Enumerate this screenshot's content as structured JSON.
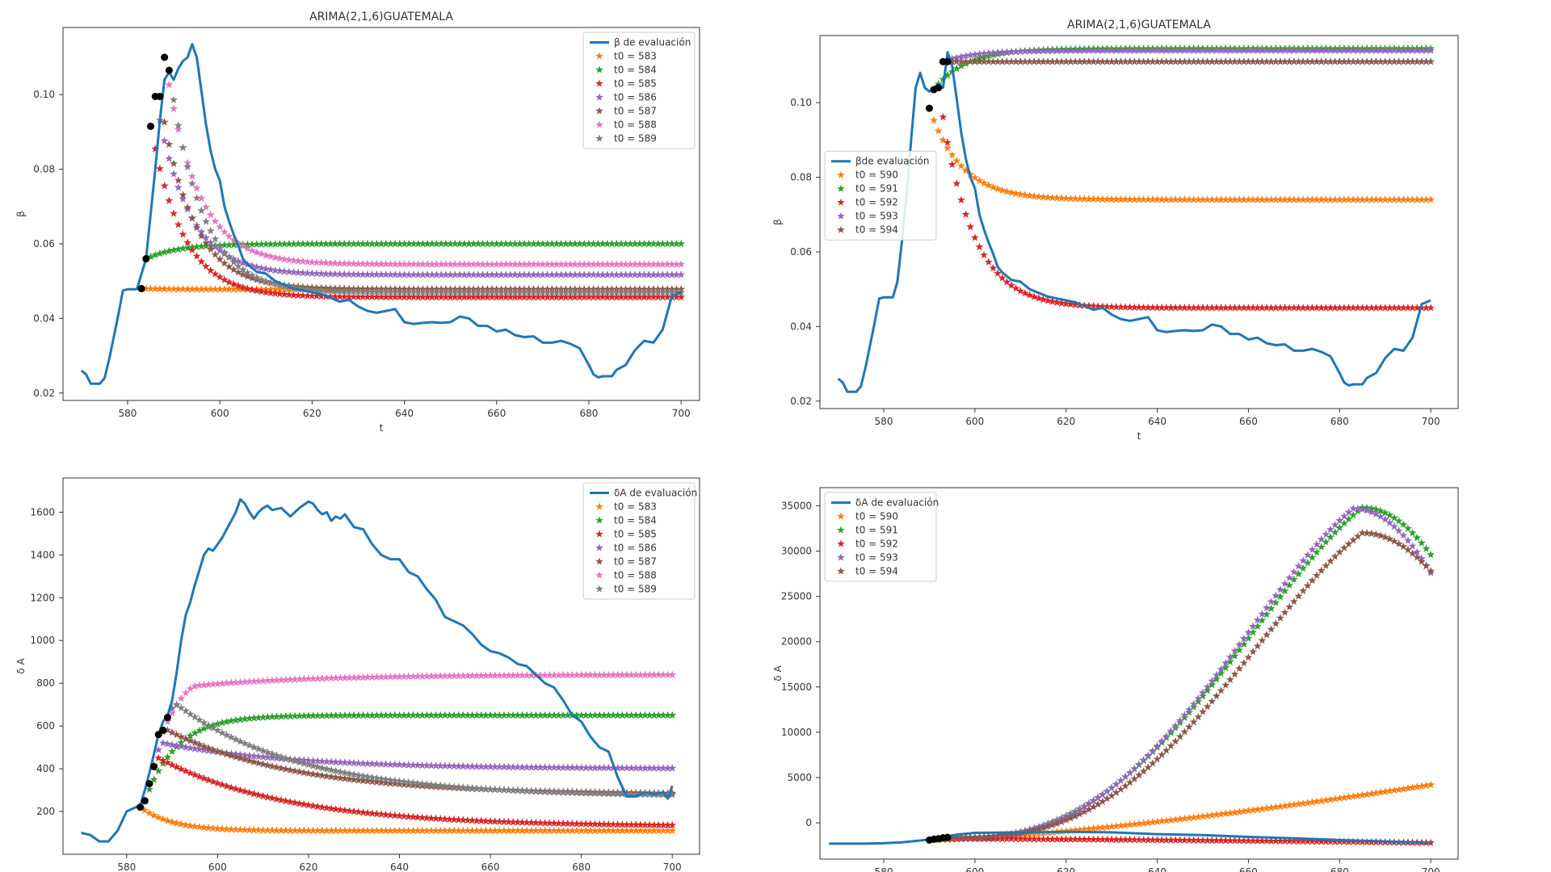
{
  "chart_data": [
    {
      "type": "line",
      "title": "ARIMA(2,1,6)GUATEMALA",
      "xlabel": "t",
      "ylabel": "β",
      "xlim": [
        566,
        704
      ],
      "ylim": [
        0.018,
        0.118
      ],
      "xticks": [
        580,
        600,
        620,
        640,
        660,
        680,
        700
      ],
      "yticks": [
        0.02,
        0.04,
        0.06,
        0.08,
        0.1
      ],
      "ytick_labels": [
        "0.02",
        "0.04",
        "0.06",
        "0.08",
        "0.10"
      ],
      "legend": "top-right",
      "base": {
        "name": "β de evaluación",
        "color": "#1f77b4",
        "x": [
          570,
          571,
          572,
          573,
          574,
          575,
          576,
          577,
          578,
          579,
          580,
          582,
          584,
          585,
          586,
          587,
          588,
          589,
          590,
          591,
          592,
          593,
          594,
          595,
          596,
          597,
          598,
          599,
          600,
          601,
          602,
          603,
          604,
          605,
          606,
          607,
          608,
          610,
          612,
          614,
          616,
          618,
          620,
          622,
          624,
          626,
          628,
          630,
          632,
          634,
          636,
          638,
          640,
          642,
          644,
          646,
          648,
          650,
          652,
          654,
          656,
          658,
          660,
          662,
          664,
          666,
          668,
          670,
          672,
          674,
          676,
          678,
          680,
          681,
          682,
          683,
          684,
          685,
          686,
          688,
          690,
          692,
          694,
          696,
          698,
          700
        ],
        "y": [
          0.026,
          0.025,
          0.0225,
          0.0225,
          0.0225,
          0.024,
          0.029,
          0.035,
          0.041,
          0.0475,
          0.0478,
          0.0478,
          0.056,
          0.068,
          0.08,
          0.093,
          0.104,
          0.106,
          0.104,
          0.107,
          0.109,
          0.11,
          0.1135,
          0.11,
          0.101,
          0.092,
          0.085,
          0.08,
          0.077,
          0.07,
          0.066,
          0.0625,
          0.0595,
          0.056,
          0.0545,
          0.0535,
          0.0525,
          0.052,
          0.05,
          0.049,
          0.048,
          0.0475,
          0.047,
          0.0465,
          0.0455,
          0.0445,
          0.045,
          0.0432,
          0.042,
          0.0415,
          0.042,
          0.0425,
          0.039,
          0.0385,
          0.0388,
          0.039,
          0.0388,
          0.039,
          0.0405,
          0.04,
          0.038,
          0.038,
          0.0365,
          0.037,
          0.0355,
          0.035,
          0.0352,
          0.0335,
          0.0335,
          0.034,
          0.0332,
          0.032,
          0.0275,
          0.025,
          0.0242,
          0.0245,
          0.0245,
          0.0245,
          0.0262,
          0.0275,
          0.0315,
          0.034,
          0.0335,
          0.037,
          0.046,
          0.047
        ]
      },
      "series": [
        {
          "name": "t0 = 583",
          "color": "#ff7f0e",
          "t0": 583,
          "y0": 0.048,
          "yend": 0.0478,
          "peak": null
        },
        {
          "name": "t0 = 584",
          "color": "#2ca02c",
          "t0": 584,
          "y0": 0.056,
          "yend": 0.06,
          "peak": null
        },
        {
          "name": "t0 = 585",
          "color": "#d62728",
          "t0": 585,
          "y0": 0.0915,
          "yend": 0.0457,
          "peak": null
        },
        {
          "name": "t0 = 586",
          "color": "#9467bd",
          "t0": 586,
          "y0": 0.0995,
          "yend": 0.0517,
          "peak": null
        },
        {
          "name": "t0 = 587",
          "color": "#8c564b",
          "t0": 587,
          "y0": 0.0995,
          "yend": 0.0478,
          "peak": null
        },
        {
          "name": "t0 = 588",
          "color": "#e377c2",
          "t0": 588,
          "y0": 0.11,
          "yend": 0.0545,
          "peak": null
        },
        {
          "name": "t0 = 589",
          "color": "#7f7f7f",
          "t0": 589,
          "y0": 0.1065,
          "yend": 0.047,
          "peak": null
        }
      ],
      "xend": 700
    },
    {
      "type": "line",
      "title": "ARIMA(2,1,6)GUATEMALA",
      "xlabel": "t",
      "ylabel": "β",
      "xlim": [
        566,
        706
      ],
      "ylim": [
        0.018,
        0.118
      ],
      "xticks": [
        580,
        600,
        620,
        640,
        660,
        680,
        700
      ],
      "yticks": [
        0.02,
        0.04,
        0.06,
        0.08,
        0.1
      ],
      "ytick_labels": [
        "0.02",
        "0.04",
        "0.06",
        "0.08",
        "0.10"
      ],
      "legend": "center-left",
      "base": {
        "name": "βde evaluación",
        "color": "#1f77b4",
        "x": [
          570,
          571,
          572,
          573,
          574,
          575,
          576,
          577,
          578,
          579,
          580,
          582,
          583,
          584,
          585,
          586,
          587,
          588,
          589,
          590,
          591,
          592,
          593,
          594,
          595,
          596,
          597,
          598,
          599,
          600,
          601,
          602,
          603,
          604,
          605,
          606,
          607,
          608,
          610,
          612,
          614,
          616,
          618,
          620,
          622,
          624,
          626,
          628,
          630,
          632,
          634,
          636,
          638,
          640,
          642,
          644,
          646,
          648,
          650,
          652,
          654,
          656,
          658,
          660,
          662,
          664,
          666,
          668,
          670,
          672,
          674,
          676,
          678,
          680,
          681,
          682,
          683,
          684,
          685,
          686,
          688,
          690,
          692,
          694,
          696,
          698,
          700
        ],
        "y": [
          0.026,
          0.025,
          0.0225,
          0.0225,
          0.0225,
          0.024,
          0.029,
          0.035,
          0.041,
          0.0475,
          0.0478,
          0.0478,
          0.052,
          0.063,
          0.075,
          0.09,
          0.104,
          0.108,
          0.104,
          0.103,
          0.104,
          0.105,
          0.104,
          0.1135,
          0.11,
          0.101,
          0.092,
          0.085,
          0.08,
          0.077,
          0.07,
          0.066,
          0.0625,
          0.0595,
          0.056,
          0.0545,
          0.0535,
          0.0525,
          0.052,
          0.05,
          0.049,
          0.048,
          0.0475,
          0.047,
          0.0465,
          0.0455,
          0.0445,
          0.045,
          0.0432,
          0.042,
          0.0415,
          0.042,
          0.0425,
          0.039,
          0.0385,
          0.0388,
          0.039,
          0.0388,
          0.039,
          0.0405,
          0.04,
          0.038,
          0.038,
          0.0365,
          0.037,
          0.0355,
          0.035,
          0.0352,
          0.0335,
          0.0335,
          0.034,
          0.0332,
          0.032,
          0.0275,
          0.025,
          0.0242,
          0.0245,
          0.0245,
          0.0245,
          0.0262,
          0.0275,
          0.0315,
          0.034,
          0.0335,
          0.037,
          0.046,
          0.047
        ]
      },
      "series": [
        {
          "name": "t0 = 590",
          "color": "#ff7f0e",
          "t0": 590,
          "y0": 0.0985,
          "yend": 0.074,
          "peak": null
        },
        {
          "name": "t0 = 591",
          "color": "#2ca02c",
          "t0": 591,
          "y0": 0.1035,
          "yend": 0.1145,
          "peak": null
        },
        {
          "name": "t0 = 592",
          "color": "#d62728",
          "t0": 592,
          "y0": 0.104,
          "yend": 0.045,
          "peak": null
        },
        {
          "name": "t0 = 593",
          "color": "#9467bd",
          "t0": 593,
          "y0": 0.111,
          "yend": 0.114,
          "peak": null
        },
        {
          "name": "t0 = 594",
          "color": "#8c564b",
          "t0": 594,
          "y0": 0.111,
          "yend": 0.111,
          "peak": null
        }
      ],
      "xend": 700
    },
    {
      "type": "line",
      "title": "",
      "xlabel": "",
      "ylabel": "δ A",
      "xlim": [
        566,
        706
      ],
      "ylim": [
        0,
        1760
      ],
      "xticks": [
        580,
        600,
        620,
        640,
        660,
        680,
        700
      ],
      "yticks": [
        200,
        400,
        600,
        800,
        1000,
        1200,
        1400,
        1600
      ],
      "ytick_labels": [
        "200",
        "400",
        "600",
        "800",
        "1000",
        "1200",
        "1400",
        "1600"
      ],
      "legend": "top-right",
      "base": {
        "name": "δA de evaluación",
        "color": "#1f77b4",
        "x": [
          570,
          572,
          574,
          576,
          578,
          580,
          582,
          583,
          584,
          585,
          586,
          587,
          588,
          589,
          590,
          591,
          592,
          593,
          594,
          595,
          596,
          597,
          598,
          599,
          600,
          601,
          602,
          603,
          604,
          605,
          606,
          607,
          608,
          609,
          610,
          611,
          612,
          614,
          616,
          618,
          620,
          621,
          622,
          623,
          624,
          625,
          626,
          627,
          628,
          630,
          632,
          634,
          636,
          638,
          640,
          642,
          644,
          646,
          648,
          650,
          652,
          654,
          656,
          658,
          660,
          662,
          664,
          666,
          668,
          670,
          672,
          674,
          676,
          678,
          680,
          682,
          684,
          686,
          688,
          690,
          692,
          694,
          696,
          698,
          699,
          700
        ],
        "y": [
          100,
          90,
          60,
          60,
          110,
          200,
          220,
          230,
          300,
          380,
          470,
          560,
          620,
          650,
          720,
          850,
          1000,
          1120,
          1180,
          1260,
          1330,
          1400,
          1430,
          1420,
          1450,
          1480,
          1520,
          1560,
          1600,
          1660,
          1640,
          1600,
          1570,
          1600,
          1620,
          1630,
          1610,
          1620,
          1580,
          1620,
          1650,
          1640,
          1610,
          1590,
          1600,
          1560,
          1580,
          1570,
          1590,
          1530,
          1520,
          1450,
          1400,
          1380,
          1380,
          1320,
          1300,
          1240,
          1190,
          1110,
          1090,
          1070,
          1030,
          980,
          950,
          940,
          920,
          890,
          880,
          840,
          800,
          780,
          720,
          650,
          620,
          550,
          500,
          480,
          360,
          270,
          270,
          290,
          280,
          290,
          260,
          320
        ]
      },
      "series": [
        {
          "name": "t0 = 583",
          "color": "#ff7f0e",
          "t0": 583,
          "y0": 220,
          "yend": 110,
          "peak": null
        },
        {
          "name": "t0 = 584",
          "color": "#2ca02c",
          "t0": 584,
          "y0": 250,
          "yend": 650,
          "peak": null
        },
        {
          "name": "t0 = 585",
          "color": "#d62728",
          "t0": 585,
          "y0": 330,
          "yend": 130,
          "peak": [
            587,
            450
          ]
        },
        {
          "name": "t0 = 586",
          "color": "#9467bd",
          "t0": 586,
          "y0": 410,
          "yend": 400,
          "peak": [
            588,
            520
          ]
        },
        {
          "name": "t0 = 587",
          "color": "#8c564b",
          "t0": 587,
          "y0": 560,
          "yend": 280,
          "peak": [
            589,
            580
          ]
        },
        {
          "name": "t0 = 588",
          "color": "#e377c2",
          "t0": 588,
          "y0": 580,
          "yend": 840,
          "peak": [
            596,
            790
          ]
        },
        {
          "name": "t0 = 589",
          "color": "#7f7f7f",
          "t0": 589,
          "y0": 640,
          "yend": 270,
          "peak": [
            591,
            700
          ]
        }
      ],
      "xend": 700
    },
    {
      "type": "line",
      "title": "",
      "xlabel": "",
      "ylabel": "δ A",
      "xlim": [
        566,
        706
      ],
      "ylim": [
        -4000,
        37000
      ],
      "xticks": [
        580,
        600,
        620,
        640,
        660,
        680,
        700
      ],
      "yticks": [
        0,
        5000,
        10000,
        15000,
        20000,
        25000,
        30000,
        35000
      ],
      "ytick_labels": [
        "0",
        "5000",
        "10000",
        "15000",
        "20000",
        "25000",
        "30000",
        "35000"
      ],
      "legend": "top-left",
      "base": {
        "name": "δA de evaluación",
        "color": "#1f77b4",
        "x": [
          568,
          572,
          576,
          580,
          584,
          588,
          592,
          596,
          600,
          610,
          620,
          630,
          640,
          650,
          660,
          670,
          680,
          690,
          700
        ],
        "y": [
          -2300,
          -2300,
          -2300,
          -2250,
          -2150,
          -1950,
          -1700,
          -1300,
          -1100,
          -1050,
          -1000,
          -1050,
          -1250,
          -1350,
          -1550,
          -1700,
          -1900,
          -2050,
          -2200
        ]
      },
      "series": [
        {
          "name": "t0 = 590",
          "color": "#ff7f0e",
          "t0": 590,
          "y0": -1900,
          "yend": 4200,
          "peak": null
        },
        {
          "name": "t0 = 591",
          "color": "#2ca02c",
          "t0": 591,
          "y0": -1800,
          "yend": 29600,
          "peak": [
            685,
            34800
          ]
        },
        {
          "name": "t0 = 592",
          "color": "#d62728",
          "t0": 592,
          "y0": -1750,
          "yend": -2200,
          "peak": null
        },
        {
          "name": "t0 = 593",
          "color": "#9467bd",
          "t0": 593,
          "y0": -1650,
          "yend": 27600,
          "peak": [
            683,
            34700
          ]
        },
        {
          "name": "t0 = 594",
          "color": "#8c564b",
          "t0": 594,
          "y0": -1600,
          "yend": 27800,
          "peak": [
            685,
            32000
          ]
        }
      ],
      "xend": 700
    }
  ]
}
